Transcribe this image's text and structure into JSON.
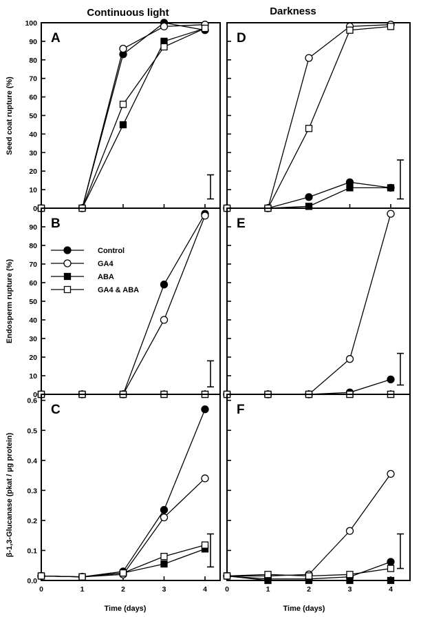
{
  "column_titles": [
    "Continuous light",
    "Darkness"
  ],
  "legend": [
    {
      "label": "Control",
      "marker": "filled-circle"
    },
    {
      "label": "GA4",
      "marker": "open-circle"
    },
    {
      "label": "ABA",
      "marker": "filled-square"
    },
    {
      "label": "GA4 & ABA",
      "marker": "open-square"
    }
  ],
  "y_axis_labels": [
    "Seed coat rupture (%)",
    "Endosperm rupture (%)",
    "β-1,3-Glucanase (pkat / µg protein)"
  ],
  "x_axis_label": "Time (days)",
  "chart_data": [
    {
      "panel": "A",
      "type": "line",
      "condition": "Continuous light",
      "x": [
        0,
        1,
        2,
        3,
        4
      ],
      "xlim": [
        0,
        4
      ],
      "ylim": [
        0,
        100
      ],
      "yticks": [
        "0",
        "10",
        "20",
        "30",
        "40",
        "50",
        "60",
        "70",
        "80",
        "90",
        "100"
      ],
      "xticks": [],
      "series": [
        {
          "name": "Control",
          "values": [
            0,
            0,
            83,
            100,
            96
          ]
        },
        {
          "name": "GA4",
          "values": [
            0,
            0,
            86,
            98,
            99
          ]
        },
        {
          "name": "ABA",
          "values": [
            0,
            0,
            45,
            90,
            97
          ]
        },
        {
          "name": "GA4 & ABA",
          "values": [
            0,
            0,
            56,
            87,
            97
          ]
        }
      ],
      "error_bar": {
        "x": 4.3,
        "low": 5,
        "high": 18
      }
    },
    {
      "panel": "D",
      "type": "line",
      "condition": "Darkness",
      "x": [
        0,
        1,
        2,
        3,
        4
      ],
      "xlim": [
        0,
        4
      ],
      "ylim": [
        0,
        100
      ],
      "xticks": [],
      "series": [
        {
          "name": "Control",
          "values": [
            0,
            0,
            6,
            14,
            11
          ]
        },
        {
          "name": "GA4",
          "values": [
            0,
            0,
            81,
            98,
            99
          ]
        },
        {
          "name": "ABA",
          "values": [
            0,
            0,
            1,
            11,
            11
          ]
        },
        {
          "name": "GA4 & ABA",
          "values": [
            0,
            0,
            43,
            96,
            98
          ]
        }
      ],
      "error_bar": {
        "x": 4.3,
        "low": 5,
        "high": 26
      }
    },
    {
      "panel": "B",
      "type": "line",
      "condition": "Continuous light",
      "x": [
        0,
        1,
        2,
        3,
        4
      ],
      "xlim": [
        0,
        4
      ],
      "ylim": [
        0,
        100
      ],
      "yticks": [
        "0",
        "10",
        "20",
        "30",
        "40",
        "50",
        "60",
        "70",
        "80",
        "90"
      ],
      "xticks": [],
      "series": [
        {
          "name": "Control",
          "values": [
            0,
            0,
            0,
            59,
            97
          ]
        },
        {
          "name": "GA4",
          "values": [
            0,
            0,
            0,
            40,
            96
          ]
        },
        {
          "name": "ABA",
          "values": [
            0,
            0,
            0,
            0,
            0
          ]
        },
        {
          "name": "GA4 & ABA",
          "values": [
            0,
            0,
            0,
            0,
            0
          ]
        }
      ],
      "error_bar": {
        "x": 4.3,
        "low": 4,
        "high": 18
      }
    },
    {
      "panel": "E",
      "type": "line",
      "condition": "Darkness",
      "x": [
        0,
        1,
        2,
        3,
        4
      ],
      "xlim": [
        0,
        4
      ],
      "ylim": [
        0,
        100
      ],
      "xticks": [],
      "series": [
        {
          "name": "Control",
          "values": [
            0,
            0,
            0,
            1,
            8
          ]
        },
        {
          "name": "GA4",
          "values": [
            0,
            0,
            0,
            19,
            97
          ]
        },
        {
          "name": "ABA",
          "values": [
            0,
            0,
            0,
            0,
            0
          ]
        },
        {
          "name": "GA4 & ABA",
          "values": [
            0,
            0,
            0,
            0,
            0
          ]
        }
      ],
      "error_bar": {
        "x": 4.3,
        "low": 5,
        "high": 22
      }
    },
    {
      "panel": "C",
      "type": "line",
      "condition": "Continuous light",
      "x": [
        0,
        1,
        2,
        3,
        4
      ],
      "xlim": [
        0,
        4
      ],
      "ylim": [
        0,
        0.62
      ],
      "yticks": [
        "0.0",
        "0.1",
        "0.2",
        "0.3",
        "0.4",
        "0.5",
        "0.6"
      ],
      "xticks": [
        "0",
        "1",
        "2",
        "3",
        "4"
      ],
      "series": [
        {
          "name": "Control",
          "values": [
            0.015,
            0.012,
            0.03,
            0.235,
            0.57
          ]
        },
        {
          "name": "GA4",
          "values": [
            0.015,
            0.012,
            0.02,
            0.21,
            0.34
          ]
        },
        {
          "name": "ABA",
          "values": [
            0.015,
            0.012,
            0.025,
            0.055,
            0.105
          ]
        },
        {
          "name": "GA4 & ABA",
          "values": [
            0.015,
            0.012,
            0.025,
            0.08,
            0.118
          ]
        }
      ],
      "error_bar": {
        "x": 4.3,
        "low": 0.045,
        "high": 0.155
      }
    },
    {
      "panel": "F",
      "type": "line",
      "condition": "Darkness",
      "x": [
        0,
        1,
        2,
        3,
        4
      ],
      "xlim": [
        0,
        4
      ],
      "ylim": [
        0,
        0.62
      ],
      "xticks": [
        "0",
        "1",
        "2",
        "3",
        "4"
      ],
      "series": [
        {
          "name": "Control",
          "values": [
            0.015,
            0.005,
            0.005,
            0.012,
            0.062
          ]
        },
        {
          "name": "GA4",
          "values": [
            0.015,
            0.015,
            0.02,
            0.165,
            0.355
          ]
        },
        {
          "name": "ABA",
          "values": [
            0.015,
            0.0,
            0.0,
            0.0,
            0.0
          ]
        },
        {
          "name": "GA4 & ABA",
          "values": [
            0.015,
            0.02,
            0.015,
            0.02,
            0.04
          ]
        }
      ],
      "error_bar": {
        "x": 4.3,
        "low": 0.04,
        "high": 0.155
      }
    }
  ]
}
